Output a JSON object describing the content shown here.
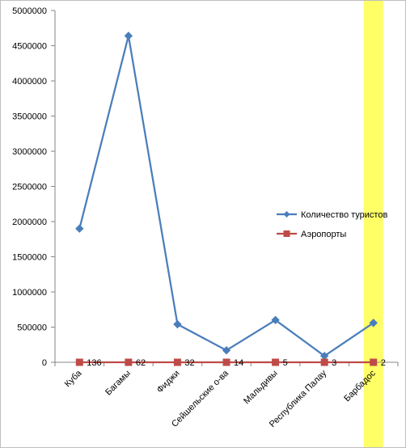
{
  "chart_data": {
    "type": "line",
    "categories": [
      "Куба",
      "Багамы",
      "Фиджи",
      "Сейшельские о-ва",
      "Мальдивы",
      "Республика Палау",
      "Барбадос"
    ],
    "series": [
      {
        "name": "Количество туристов",
        "values": [
          1900000,
          4640000,
          540000,
          170000,
          600000,
          90000,
          560000
        ],
        "color": "#4a7ebb",
        "marker": "diamond"
      },
      {
        "name": "Аэропорты",
        "values": [
          136,
          62,
          32,
          14,
          5,
          3,
          2
        ],
        "color": "#be4b48",
        "marker": "square",
        "data_labels": [
          "136",
          "62",
          "32",
          "14",
          "5",
          "3",
          "2"
        ]
      }
    ],
    "ylim": [
      0,
      5000000
    ],
    "yticks": [
      "0",
      "500000",
      "1000000",
      "1500000",
      "2000000",
      "2500000",
      "3000000",
      "3500000",
      "4000000",
      "4500000",
      "5000000"
    ],
    "grid": false,
    "legend_position": "right",
    "highlighted_category": "Барбадос",
    "highlight_color": "#ffff66"
  }
}
